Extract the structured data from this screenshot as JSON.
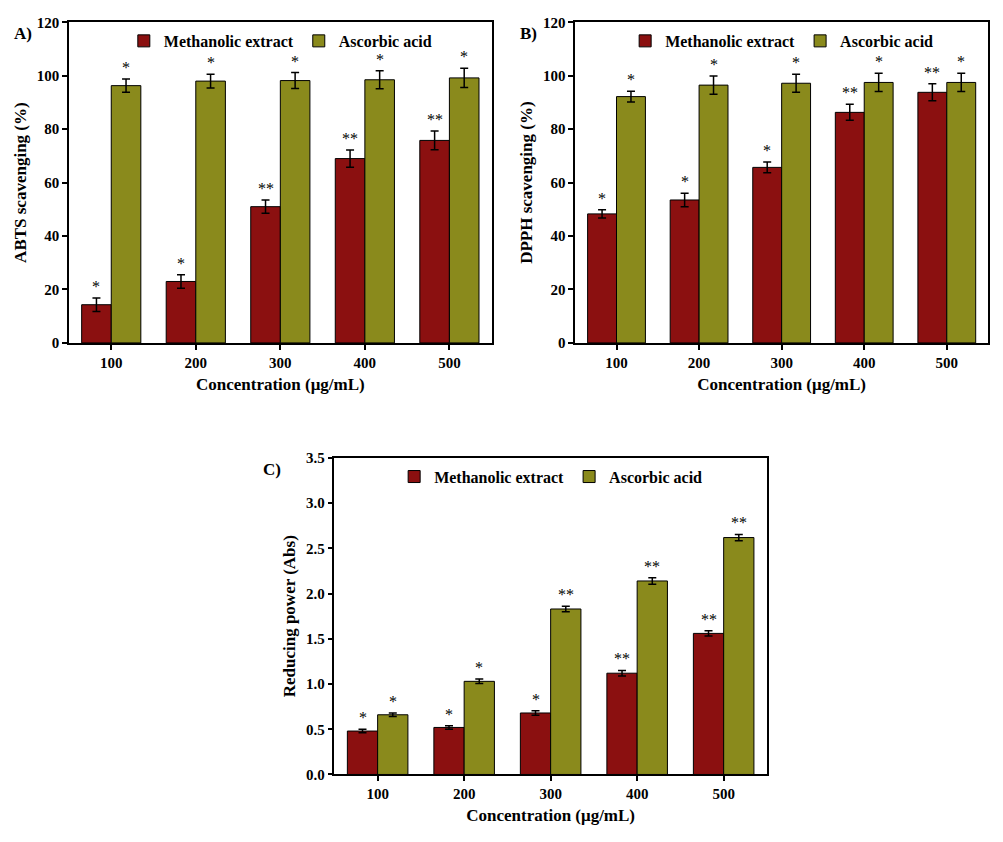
{
  "chart_data": [
    {
      "type": "bar",
      "title": "A)",
      "x_label": "Concentration (μg/mL)",
      "y_label": "ABTS scavenging (%)",
      "categories": [
        "100",
        "200",
        "300",
        "400",
        "500"
      ],
      "ylim": [
        0,
        120
      ],
      "yticks": [
        0,
        20,
        40,
        60,
        80,
        100,
        120
      ],
      "legend": "top",
      "series": [
        {
          "name": "Methanolic extract",
          "color": "#8b1010",
          "values": [
            14.3,
            23.0,
            51.0,
            69.0,
            75.8
          ],
          "errors": [
            2.5,
            2.5,
            2.5,
            3.2,
            3.5
          ],
          "annotations": [
            "*",
            "*",
            "**",
            "**",
            "**"
          ]
        },
        {
          "name": "Ascorbic acid",
          "color": "#8a8a1c",
          "values": [
            96.3,
            98.0,
            98.2,
            98.5,
            99.2
          ],
          "errors": [
            2.5,
            2.6,
            3.0,
            3.4,
            3.6
          ],
          "annotations": [
            "*",
            "*",
            "*",
            "*",
            "*"
          ]
        }
      ]
    },
    {
      "type": "bar",
      "title": "B)",
      "x_label": "Concentration (μg/mL)",
      "y_label": "DPPH scavenging (%)",
      "categories": [
        "100",
        "200",
        "300",
        "400",
        "500"
      ],
      "ylim": [
        0,
        120
      ],
      "yticks": [
        0,
        20,
        40,
        60,
        80,
        100,
        120
      ],
      "legend": "top",
      "series": [
        {
          "name": "Methanolic extract",
          "color": "#8b1010",
          "values": [
            48.3,
            53.5,
            65.7,
            86.3,
            93.8
          ],
          "errors": [
            1.5,
            2.5,
            2.0,
            3.0,
            3.2
          ],
          "annotations": [
            "*",
            "*",
            "*",
            "**",
            "**"
          ]
        },
        {
          "name": "Ascorbic acid",
          "color": "#8a8a1c",
          "values": [
            92.2,
            96.5,
            97.2,
            97.5,
            97.5
          ],
          "errors": [
            2.0,
            3.4,
            3.4,
            3.4,
            3.4
          ],
          "annotations": [
            "*",
            "*",
            "*",
            "*",
            "*"
          ]
        }
      ]
    },
    {
      "type": "bar",
      "title": "C)",
      "x_label": "Concentration (μg/mL)",
      "y_label": "Reducing power (Abs)",
      "categories": [
        "100",
        "200",
        "300",
        "400",
        "500"
      ],
      "ylim": [
        0,
        3.5
      ],
      "yticks": [
        {
          "value": 0,
          "label": "0.0"
        },
        0.5,
        {
          "value": 1,
          "label": "1.0"
        },
        1.5,
        {
          "value": 2,
          "label": "2.0"
        },
        2.5,
        {
          "value": 3,
          "label": "3.0"
        },
        3.5
      ],
      "legend": "top",
      "series": [
        {
          "name": "Methanolic extract",
          "color": "#8b1010",
          "values": [
            0.48,
            0.52,
            0.68,
            1.12,
            1.56
          ],
          "errors": [
            0.02,
            0.02,
            0.025,
            0.03,
            0.03
          ],
          "annotations": [
            "*",
            "*",
            "*",
            "**",
            "**"
          ]
        },
        {
          "name": "Ascorbic acid",
          "color": "#8a8a1c",
          "values": [
            0.66,
            1.03,
            1.83,
            2.14,
            2.62
          ],
          "errors": [
            0.02,
            0.025,
            0.03,
            0.035,
            0.035
          ],
          "annotations": [
            "*",
            "*",
            "**",
            "**",
            "**"
          ]
        }
      ]
    }
  ]
}
